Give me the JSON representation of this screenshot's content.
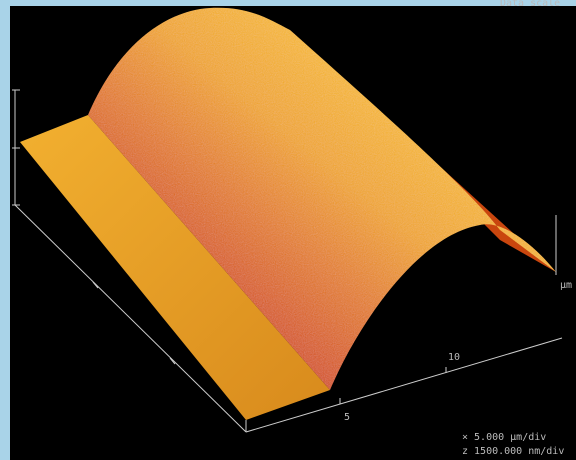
{
  "image": {
    "data_scale": "Data scale",
    "unit_right": "µm",
    "axis_ticks": [
      "10",
      "5"
    ],
    "scale_x": "×  5.000 µm/div",
    "scale_z": "z  1500.000 nm/div"
  }
}
